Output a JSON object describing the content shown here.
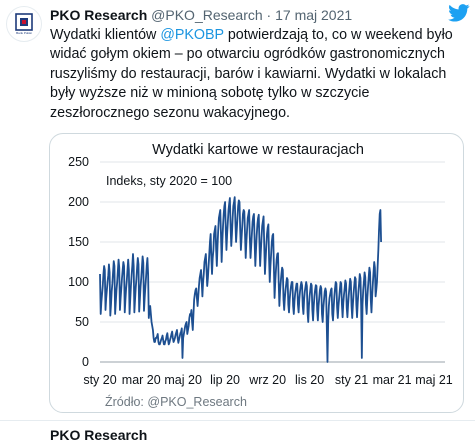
{
  "tweet": {
    "author_name": "PKO Research",
    "author_handle": "@PKO_Research",
    "separator": "·",
    "date": "17 maj 2021",
    "text_before_mention": "Wydatki klientów ",
    "mention": "@PKOBP",
    "text_after_mention": " potwierdzają to, co w weekend było widać gołym okiem – po otwarciu ogródków gastronomicznych ruszyliśmy do restauracji, barów i kawiarni. Wydatki w lokalach były wyższe niż w minioną sobotę tylko w szczycie zeszłorocznego sezonu wakacyjnego.",
    "avatar_caption": "Bank Polski",
    "icons": [
      "pko-logo-icon",
      "twitter-bird-icon"
    ]
  },
  "next_tweet": {
    "author_name": "PKO Research"
  },
  "colors": {
    "line": "#1d4f91",
    "mention": "#1b95e0",
    "twitter_blue": "#1da1f2",
    "pko_navy": "#1d3a7a"
  },
  "chart_data": {
    "type": "line",
    "title": "Wydatki kartowe w restauracjach",
    "annotation": "Indeks, sty 2020 = 100",
    "source": "Źródło: @PKO_Research",
    "x_tick_labels": [
      "sty 20",
      "mar 20",
      "maj 20",
      "lip 20",
      "wrz 20",
      "lis 20",
      "sty 21",
      "mar 21",
      "maj 21"
    ],
    "x_range": [
      "2020-01-01",
      "2021-05-17"
    ],
    "ylim": [
      0,
      250
    ],
    "y_ticks": [
      0,
      50,
      100,
      150,
      200,
      250
    ],
    "grid": "horizontal",
    "legend": "none",
    "series": [
      {
        "frequency": "daily",
        "x_start": "2020-01-01",
        "values": [
          110,
          60,
          75,
          85,
          95,
          110,
          120,
          115,
          65,
          80,
          90,
          100,
          108,
          122,
          112,
          58,
          72,
          88,
          98,
          112,
          126,
          120,
          60,
          75,
          90,
          100,
          114,
          128,
          118,
          65,
          80,
          92,
          105,
          115,
          125,
          120,
          62,
          78,
          92,
          102,
          115,
          128,
          115,
          60,
          78,
          95,
          108,
          120,
          135,
          120,
          62,
          78,
          93,
          104,
          118,
          130,
          122,
          63,
          78,
          94,
          105,
          118,
          132,
          124,
          64,
          80,
          94,
          106,
          120,
          130,
          110,
          55,
          65,
          70,
          60,
          50,
          45,
          40,
          30,
          25,
          25,
          30,
          30,
          32,
          35,
          25,
          22,
          22,
          25,
          28,
          30,
          33,
          27,
          22,
          22,
          26,
          28,
          33,
          36,
          28,
          22,
          24,
          28,
          31,
          35,
          38,
          30,
          25,
          27,
          30,
          34,
          37,
          40,
          30,
          24,
          28,
          32,
          36,
          38,
          42,
          5,
          30,
          35,
          40,
          45,
          48,
          50,
          35,
          40,
          45,
          55,
          60,
          58,
          65,
          50,
          40,
          60,
          78,
          85,
          90,
          92,
          80,
          70,
          82,
          95,
          105,
          110,
          115,
          100,
          82,
          100,
          110,
          125,
          130,
          135,
          115,
          95,
          105,
          120,
          135,
          150,
          160,
          130,
          110,
          130,
          140,
          160,
          165,
          170,
          140,
          120,
          145,
          165,
          180,
          185,
          190,
          160,
          125,
          150,
          170,
          185,
          195,
          200,
          165,
          140,
          160,
          175,
          190,
          198,
          205,
          170,
          145,
          160,
          180,
          195,
          200,
          206,
          175,
          150,
          165,
          180,
          195,
          202,
          200,
          165,
          140,
          155,
          170,
          185,
          190,
          188,
          160,
          130,
          150,
          165,
          180,
          185,
          190,
          155,
          130,
          145,
          160,
          175,
          182,
          185,
          150,
          120,
          140,
          158,
          172,
          180,
          184,
          150,
          120,
          138,
          155,
          170,
          176,
          182,
          145,
          110,
          128,
          145,
          160,
          168,
          172,
          130,
          100,
          120,
          135,
          150,
          158,
          160,
          120,
          80,
          100,
          115,
          128,
          135,
          136,
          100,
          70,
          88,
          100,
          110,
          118,
          115,
          78,
          65,
          80,
          90,
          98,
          105,
          103,
          72,
          62,
          78,
          88,
          95,
          100,
          100,
          70,
          60,
          76,
          86,
          92,
          98,
          98,
          72,
          62,
          78,
          88,
          95,
          100,
          96,
          70,
          60,
          78,
          88,
          94,
          100,
          95,
          62,
          50,
          70,
          82,
          90,
          98,
          96,
          65,
          52,
          70,
          82,
          90,
          96,
          95,
          65,
          52,
          70,
          80,
          90,
          95,
          92,
          60,
          50,
          68,
          78,
          88,
          92,
          88,
          45,
          0,
          50,
          70,
          80,
          85,
          90,
          92,
          60,
          52,
          68,
          82,
          92,
          100,
          98,
          68,
          55,
          70,
          80,
          90,
          100,
          98,
          72,
          56,
          74,
          84,
          92,
          102,
          98,
          68,
          56,
          72,
          84,
          94,
          104,
          100,
          70,
          55,
          72,
          86,
          96,
          106,
          104,
          72,
          56,
          74,
          88,
          98,
          110,
          105,
          70,
          5,
          72,
          90,
          100,
          112,
          106,
          72,
          60,
          80,
          94,
          106,
          118,
          112,
          78,
          62,
          82,
          98,
          112,
          125,
          118,
          82,
          90,
          100,
          120,
          140,
          165,
          185,
          190,
          150
        ]
      }
    ]
  }
}
